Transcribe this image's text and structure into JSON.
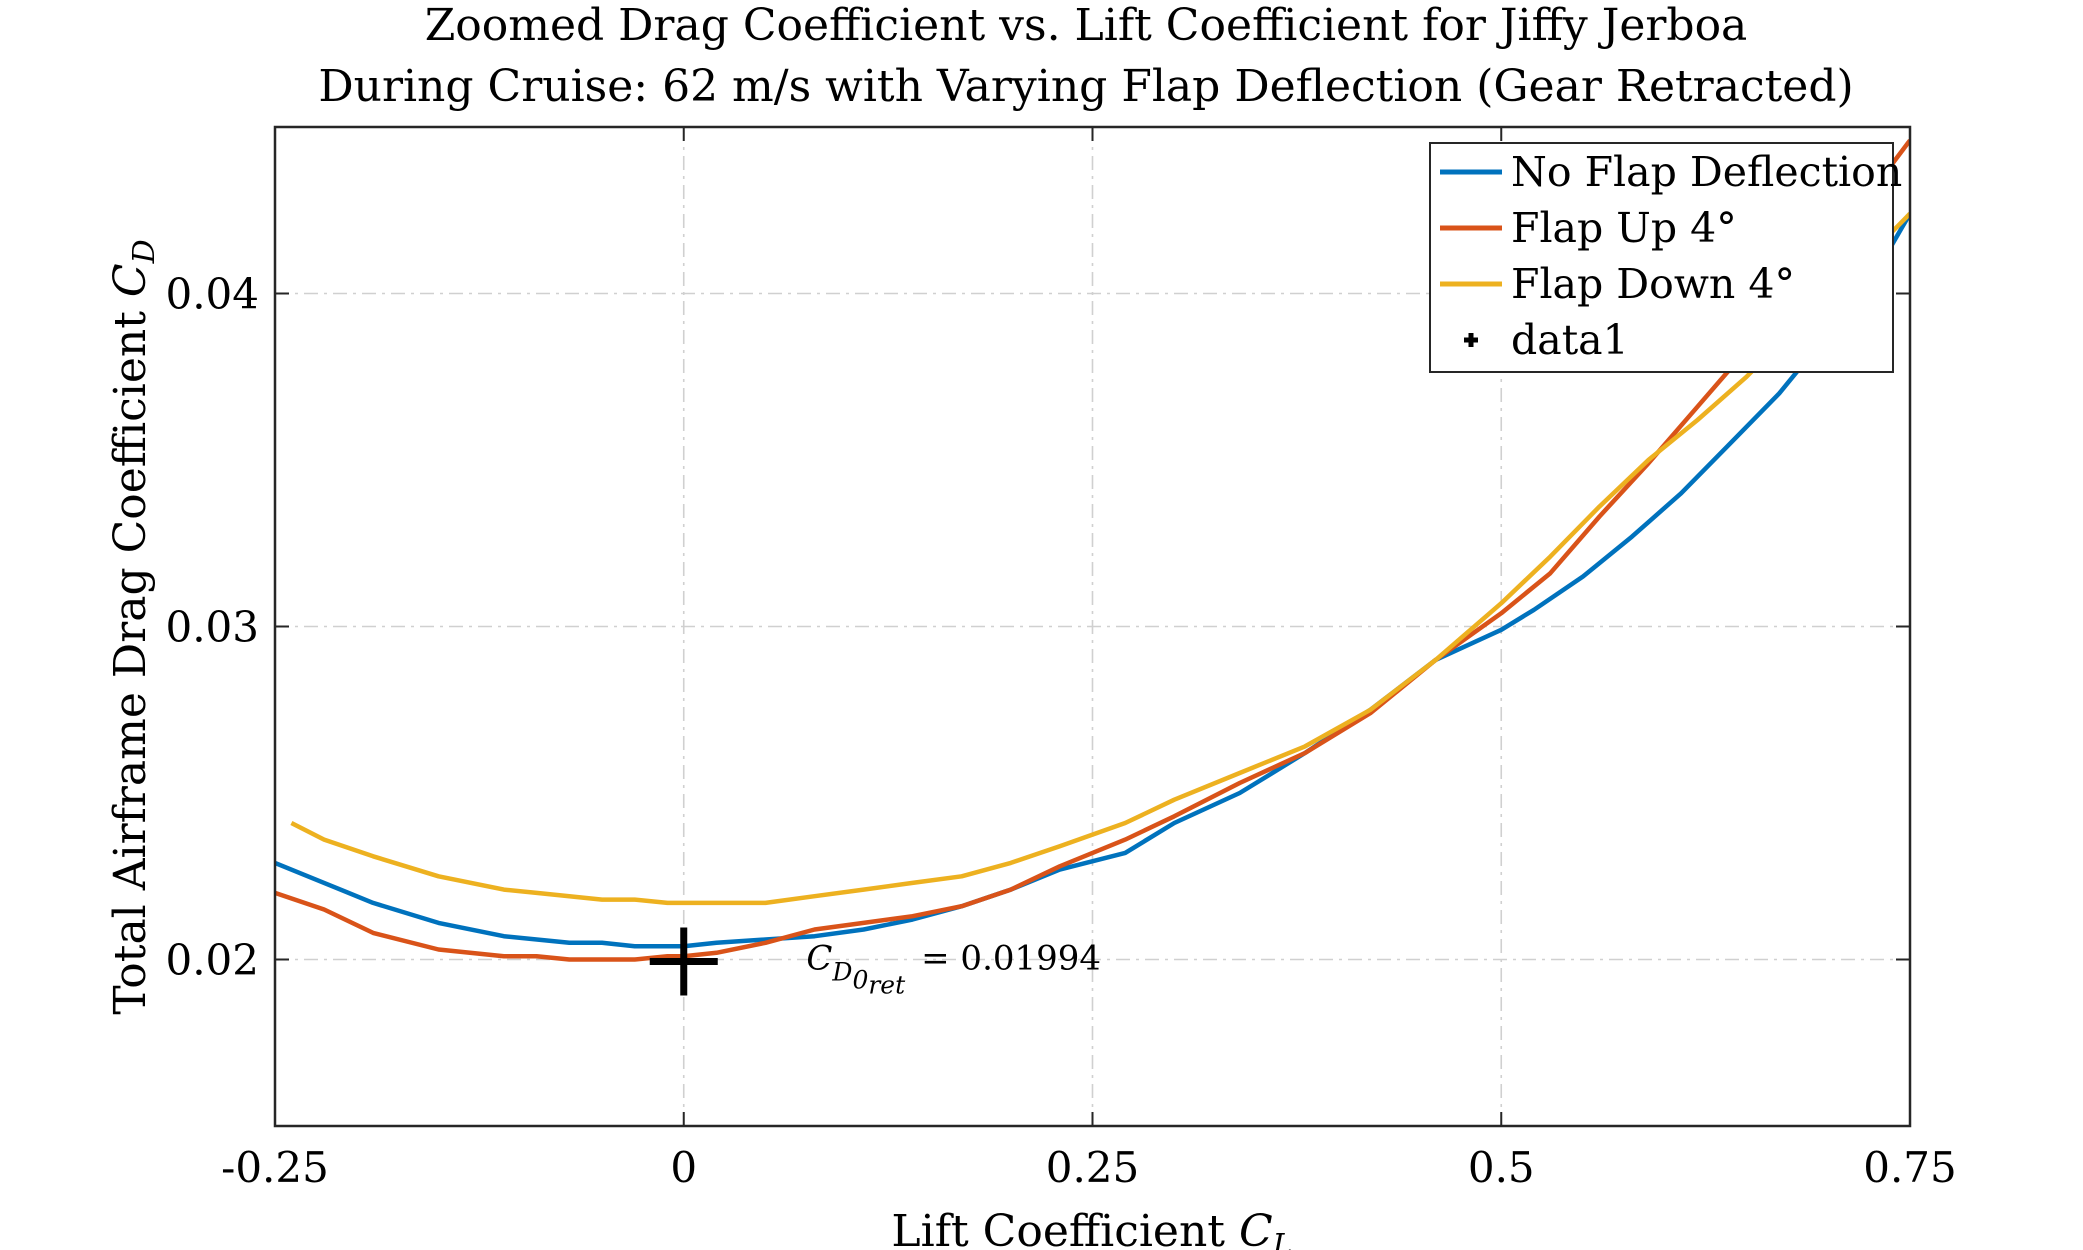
{
  "chart_data": {
    "type": "line",
    "title": "Zoomed Drag Coefficient vs. Lift Coefficient for Jiffy Jerboa",
    "subtitle": "During Cruise: 62 m/s with Varying Flap Deflection (Gear Retracted)",
    "xlabel": "Lift Coefficient C_L",
    "xlabel_text": "Lift Coefficient",
    "xlabel_symbol": "C",
    "xlabel_sub": "L",
    "ylabel": "Total Airframe Drag Coefficient C_D",
    "ylabel_text": "Total Airframe Drag Coefficient",
    "ylabel_symbol": "C",
    "ylabel_sub": "D",
    "xlim": [
      -0.25,
      0.75
    ],
    "ylim": [
      0.015,
      0.045
    ],
    "xticks": [
      -0.25,
      0,
      0.25,
      0.5,
      0.75
    ],
    "xtick_labels": [
      "-0.25",
      "0",
      "0.25",
      "0.5",
      "0.75"
    ],
    "yticks": [
      0.02,
      0.03,
      0.04
    ],
    "ytick_labels": [
      "0.02",
      "0.03",
      "0.04"
    ],
    "grid": true,
    "legend_position": "top-right",
    "series": [
      {
        "name": "No Flap Deflection",
        "color": "#0072BD",
        "x": [
          -0.25,
          -0.22,
          -0.19,
          -0.15,
          -0.11,
          -0.07,
          -0.05,
          -0.03,
          -0.01,
          0.0,
          0.02,
          0.05,
          0.08,
          0.11,
          0.14,
          0.17,
          0.2,
          0.23,
          0.27,
          0.3,
          0.34,
          0.38,
          0.42,
          0.46,
          0.5,
          0.52,
          0.55,
          0.58,
          0.61,
          0.64,
          0.67,
          0.7,
          0.73,
          0.75
        ],
        "y": [
          0.0229,
          0.0223,
          0.0217,
          0.0211,
          0.0207,
          0.0205,
          0.0205,
          0.0204,
          0.0204,
          0.0204,
          0.0205,
          0.0206,
          0.0207,
          0.0209,
          0.0212,
          0.0216,
          0.0221,
          0.0227,
          0.0232,
          0.0241,
          0.025,
          0.0262,
          0.0275,
          0.029,
          0.0299,
          0.0305,
          0.0315,
          0.0327,
          0.034,
          0.0355,
          0.037,
          0.0388,
          0.0407,
          0.0424
        ]
      },
      {
        "name": "Flap Up 4°",
        "color": "#D95319",
        "x": [
          -0.25,
          -0.22,
          -0.19,
          -0.15,
          -0.11,
          -0.09,
          -0.07,
          -0.05,
          -0.03,
          -0.01,
          0.0,
          0.02,
          0.05,
          0.08,
          0.11,
          0.14,
          0.17,
          0.2,
          0.23,
          0.27,
          0.3,
          0.34,
          0.38,
          0.42,
          0.46,
          0.5,
          0.53,
          0.56,
          0.59,
          0.62,
          0.65,
          0.68,
          0.71,
          0.73,
          0.75
        ],
        "y": [
          0.022,
          0.0215,
          0.0208,
          0.0203,
          0.0201,
          0.0201,
          0.02,
          0.02,
          0.02,
          0.0201,
          0.0201,
          0.0202,
          0.0205,
          0.0209,
          0.0211,
          0.0213,
          0.0216,
          0.0221,
          0.0228,
          0.0236,
          0.0243,
          0.0253,
          0.0262,
          0.0274,
          0.029,
          0.0304,
          0.0316,
          0.0333,
          0.0349,
          0.0366,
          0.0383,
          0.0402,
          0.042,
          0.0433,
          0.0446
        ]
      },
      {
        "name": "Flap Down 4°",
        "color": "#EDB120",
        "x": [
          -0.24,
          -0.22,
          -0.19,
          -0.15,
          -0.11,
          -0.09,
          -0.07,
          -0.05,
          -0.03,
          -0.01,
          0.0,
          0.02,
          0.05,
          0.08,
          0.11,
          0.14,
          0.17,
          0.2,
          0.23,
          0.27,
          0.3,
          0.34,
          0.38,
          0.42,
          0.46,
          0.5,
          0.53,
          0.56,
          0.59,
          0.62,
          0.65,
          0.68,
          0.71,
          0.73,
          0.75
        ],
        "y": [
          0.0241,
          0.0236,
          0.0231,
          0.0225,
          0.0221,
          0.022,
          0.0219,
          0.0218,
          0.0218,
          0.0217,
          0.0217,
          0.0217,
          0.0217,
          0.0219,
          0.0221,
          0.0223,
          0.0225,
          0.0229,
          0.0234,
          0.0241,
          0.0248,
          0.0256,
          0.0264,
          0.0275,
          0.029,
          0.0307,
          0.0321,
          0.0336,
          0.035,
          0.0362,
          0.0375,
          0.039,
          0.0405,
          0.0414,
          0.0424
        ]
      }
    ],
    "markers": [
      {
        "name": "data1",
        "x": 0,
        "y": 0.01994,
        "symbol": "+",
        "color": "#000000"
      }
    ],
    "annotation": {
      "symbol": "C",
      "sub": "D",
      "subsub": "0",
      "subsubsub": "ret",
      "value_text": "= 0.01994",
      "x": 0.075,
      "y": 0.01994
    }
  }
}
